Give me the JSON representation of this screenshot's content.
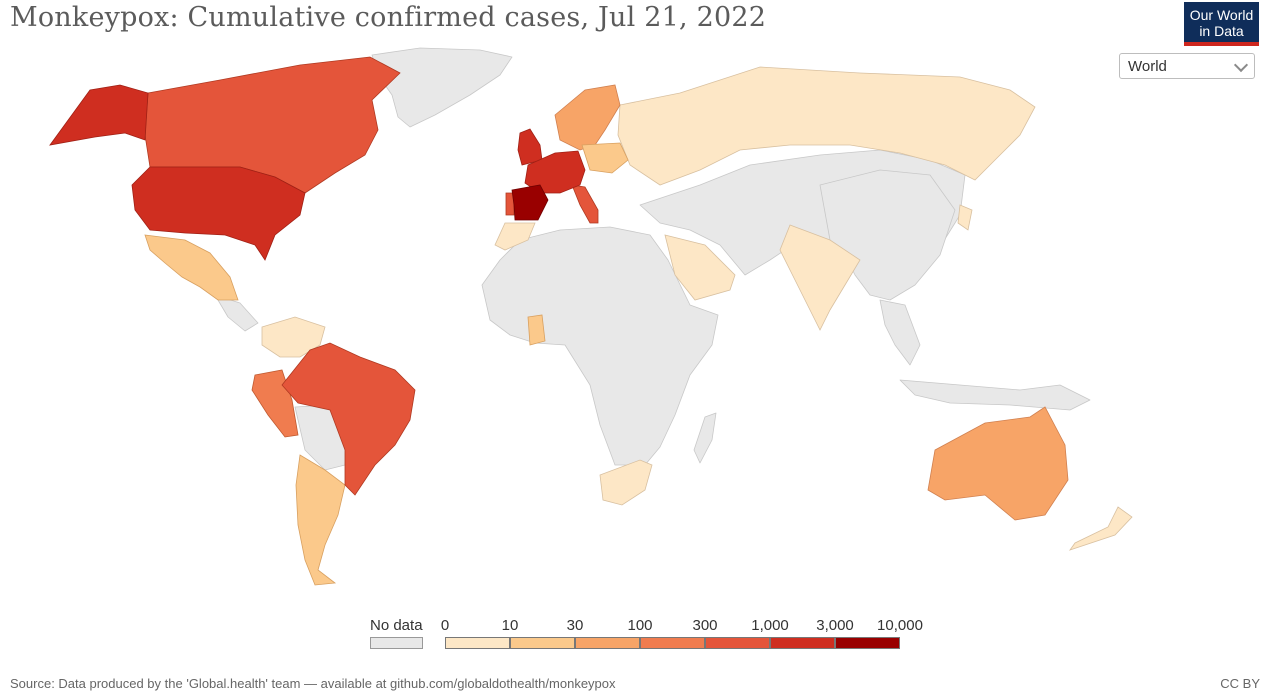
{
  "title": "Monkeypox: Cumulative confirmed cases, Jul 21, 2022",
  "logo": {
    "line1": "Our World",
    "line2": "in Data"
  },
  "region_select": {
    "value": "World"
  },
  "legend": {
    "no_data_label": "No data",
    "no_data_color": "#e8e8e8",
    "ticks": [
      "0",
      "10",
      "30",
      "100",
      "300",
      "1,000",
      "3,000",
      "10,000"
    ],
    "colors": [
      "#fde7c6",
      "#fbc98b",
      "#f7a467",
      "#f07c4f",
      "#e4553a",
      "#cf2e20",
      "#990000"
    ]
  },
  "source": "Source: Data produced by the 'Global.health' team — available at github.com/globaldothealth/monkeypox",
  "license": "CC BY",
  "chart_data": {
    "type": "choropleth",
    "date": "Jul 21, 2022",
    "scale": [
      "0",
      "10",
      "30",
      "100",
      "300",
      "1,000",
      "3,000",
      "10,000"
    ],
    "bins": [
      {
        "range": "0–10",
        "countries": [
          "Russia",
          "Colombia",
          "Venezuela",
          "Saudi Arabia",
          "India",
          "Japan",
          "Morocco",
          "South Africa",
          "New Zealand",
          "Greece",
          "Turkey"
        ]
      },
      {
        "range": "10–30",
        "countries": [
          "Mexico",
          "Argentina",
          "Chile",
          "Ghana",
          "Sweden",
          "Poland"
        ]
      },
      {
        "range": "30–100",
        "countries": [
          "Australia",
          "Norway",
          "Denmark"
        ]
      },
      {
        "range": "100–300",
        "countries": [
          "Peru",
          "Ireland"
        ]
      },
      {
        "range": "300–1,000",
        "countries": [
          "Canada",
          "Brazil",
          "Portugal",
          "Italy",
          "Netherlands",
          "Israel"
        ]
      },
      {
        "range": "1,000–3,000",
        "countries": [
          "United States",
          "United Kingdom",
          "Germany",
          "France"
        ]
      },
      {
        "range": "3,000–10,000",
        "countries": [
          "Spain"
        ]
      }
    ]
  }
}
